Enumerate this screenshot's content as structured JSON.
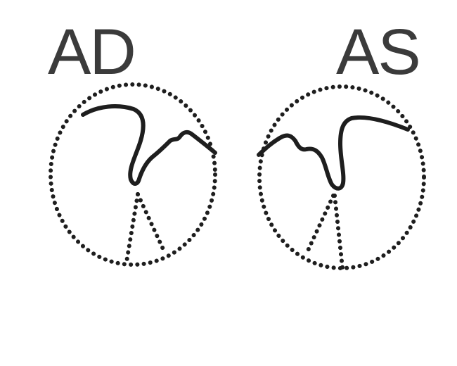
{
  "labels": {
    "right_eye": "AD",
    "left_eye": "AS"
  },
  "colors": {
    "background": "#ffffff",
    "ink": "#1e1e1e",
    "label": "#3b3b3b"
  }
}
